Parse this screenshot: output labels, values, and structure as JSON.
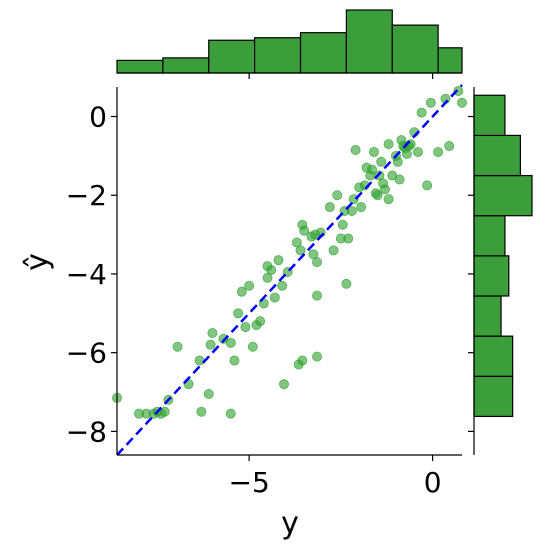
{
  "chart_data": {
    "type": "scatter",
    "title": "",
    "xlabel": "y",
    "ylabel": "ŷ",
    "xlim": [
      -8.6,
      0.8
    ],
    "ylim": [
      -8.6,
      0.75
    ],
    "x_ticks": [
      -5,
      0
    ],
    "x_tick_labels": [
      "−5",
      "0"
    ],
    "y_ticks": [
      0,
      -2,
      -4,
      -6,
      -8
    ],
    "y_tick_labels": [
      "0",
      "−2",
      "−4",
      "−6",
      "−8"
    ],
    "grid": false,
    "legend": "none",
    "colors": {
      "points": "#2ca02c",
      "bars": "#3b9e3b",
      "bar_edge": "#000000",
      "reference_line": "#0000ff"
    },
    "reference_line": {
      "from": [
        -8.6,
        -8.6
      ],
      "to": [
        0.8,
        0.8
      ],
      "style": "dashed"
    },
    "points": [
      [
        -8.6,
        -7.15
      ],
      [
        -8.0,
        -7.55
      ],
      [
        -7.8,
        -7.55
      ],
      [
        -7.6,
        -7.55
      ],
      [
        -7.5,
        -7.5
      ],
      [
        -7.4,
        -7.55
      ],
      [
        -7.3,
        -7.5
      ],
      [
        -7.2,
        -7.2
      ],
      [
        -6.95,
        -5.85
      ],
      [
        -6.65,
        -6.8
      ],
      [
        -6.3,
        -7.5
      ],
      [
        -6.1,
        -7.05
      ],
      [
        -6.35,
        -6.2
      ],
      [
        -6.05,
        -5.8
      ],
      [
        -6.0,
        -5.5
      ],
      [
        -5.7,
        -5.65
      ],
      [
        -5.5,
        -5.75
      ],
      [
        -5.5,
        -7.55
      ],
      [
        -5.4,
        -6.2
      ],
      [
        -5.3,
        -5.0
      ],
      [
        -5.2,
        -4.45
      ],
      [
        -5.1,
        -5.35
      ],
      [
        -5.0,
        -4.3
      ],
      [
        -4.9,
        -5.85
      ],
      [
        -4.8,
        -5.3
      ],
      [
        -4.7,
        -5.2
      ],
      [
        -4.6,
        -4.75
      ],
      [
        -4.5,
        -4.1
      ],
      [
        -4.5,
        -3.8
      ],
      [
        -4.4,
        -3.9
      ],
      [
        -4.3,
        -4.6
      ],
      [
        -4.2,
        -3.65
      ],
      [
        -4.1,
        -4.3
      ],
      [
        -4.05,
        -6.8
      ],
      [
        -3.95,
        -3.95
      ],
      [
        -3.7,
        -3.2
      ],
      [
        -3.65,
        -6.3
      ],
      [
        -3.6,
        -3.4
      ],
      [
        -3.55,
        -6.2
      ],
      [
        -3.55,
        -2.75
      ],
      [
        -3.5,
        -2.9
      ],
      [
        -3.3,
        -3.05
      ],
      [
        -3.25,
        -3.5
      ],
      [
        -3.2,
        -3.0
      ],
      [
        -3.15,
        -6.1
      ],
      [
        -3.15,
        -4.55
      ],
      [
        -3.15,
        -3.7
      ],
      [
        -3.05,
        -2.95
      ],
      [
        -2.8,
        -2.3
      ],
      [
        -2.7,
        -3.4
      ],
      [
        -2.6,
        -2.0
      ],
      [
        -2.5,
        -3.1
      ],
      [
        -2.45,
        -2.75
      ],
      [
        -2.4,
        -2.4
      ],
      [
        -2.35,
        -4.25
      ],
      [
        -2.3,
        -3.1
      ],
      [
        -2.2,
        -2.4
      ],
      [
        -2.15,
        -2.1
      ],
      [
        -2.1,
        -0.85
      ],
      [
        -2.0,
        -1.8
      ],
      [
        -1.95,
        -2.3
      ],
      [
        -1.85,
        -1.75
      ],
      [
        -1.8,
        -1.3
      ],
      [
        -1.7,
        -1.5
      ],
      [
        -1.65,
        -1.35
      ],
      [
        -1.6,
        -0.9
      ],
      [
        -1.55,
        -1.95
      ],
      [
        -1.5,
        -2.0
      ],
      [
        -1.45,
        -1.5
      ],
      [
        -1.4,
        -1.15
      ],
      [
        -1.35,
        -1.7
      ],
      [
        -1.3,
        -1.85
      ],
      [
        -1.2,
        -2.1
      ],
      [
        -1.2,
        -0.7
      ],
      [
        -1.1,
        -1.5
      ],
      [
        -1.0,
        -1.0
      ],
      [
        -0.95,
        -1.15
      ],
      [
        -0.9,
        -1.6
      ],
      [
        -0.85,
        -0.6
      ],
      [
        -0.8,
        -0.75
      ],
      [
        -0.75,
        -0.8
      ],
      [
        -0.7,
        -0.95
      ],
      [
        -0.65,
        -0.75
      ],
      [
        -0.6,
        -0.7
      ],
      [
        -0.5,
        -0.4
      ],
      [
        -0.4,
        -0.9
      ],
      [
        -0.3,
        0.1
      ],
      [
        -0.15,
        -1.75
      ],
      [
        -0.05,
        0.35
      ],
      [
        0.15,
        -0.9
      ],
      [
        0.35,
        0.45
      ],
      [
        0.45,
        -0.75
      ],
      [
        0.7,
        0.65
      ],
      [
        0.8,
        0.35
      ]
    ],
    "x_histogram": {
      "bin_edges": [
        -8.6,
        -7.35,
        -6.1,
        -4.85,
        -3.6,
        -2.35,
        -1.1,
        0.15,
        1.4
      ],
      "counts": [
        5,
        6,
        13,
        14,
        16,
        25,
        19,
        10
      ]
    },
    "y_histogram": {
      "bin_edges": [
        -7.62,
        -6.6,
        -5.58,
        -4.56,
        -3.54,
        -2.52,
        -1.5,
        -0.48,
        0.54
      ],
      "counts": [
        10,
        10,
        7,
        9,
        8,
        15,
        12,
        8
      ]
    }
  }
}
